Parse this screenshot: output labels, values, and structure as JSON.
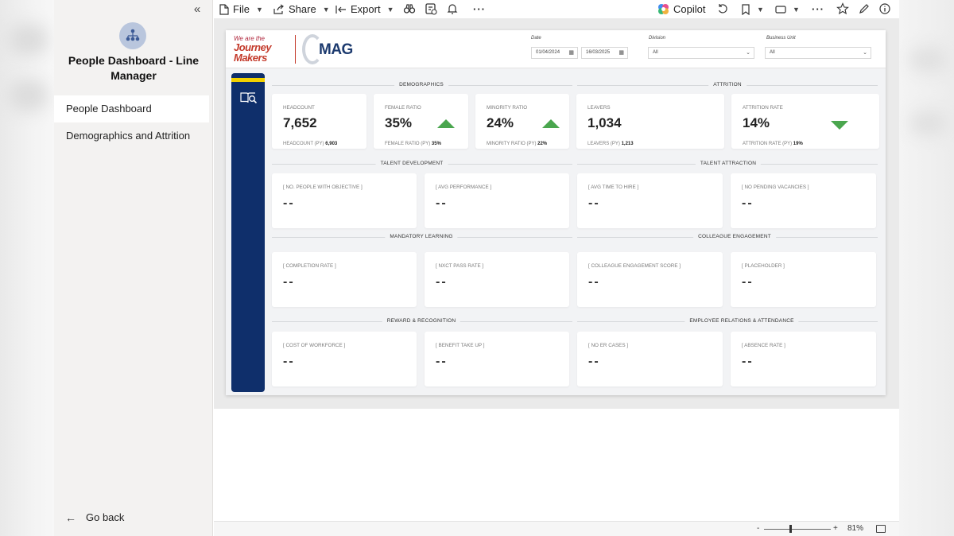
{
  "nav": {
    "title": "People Dashboard - Line Manager",
    "items": [
      {
        "label": "People Dashboard"
      },
      {
        "label": "Demographics and Attrition"
      }
    ],
    "go_back": "Go back"
  },
  "toolbar": {
    "file": "File",
    "share": "Share",
    "export": "Export",
    "copilot": "Copilot"
  },
  "report": {
    "brand_line1": "We are the",
    "brand_line2": "Journey",
    "brand_line3": "Makers",
    "mag": "MAG",
    "filters": {
      "date_label": "Date",
      "date_start": "01/04/2024",
      "date_end": "16/03/2025",
      "division_label": "Division",
      "division_value": "All",
      "business_unit_label": "Business Unit",
      "business_unit_value": "All"
    },
    "sections": {
      "demographics": "DEMOGRAPHICS",
      "attrition": "ATTRITION",
      "talent_development": "TALENT DEVELOPMENT",
      "talent_attraction": "TALENT ATTRACTION",
      "mandatory_learning": "MANDATORY LEARNING",
      "colleague_engagement": "COLLEAGUE ENGAGEMENT",
      "reward_recognition": "REWARD & RECOGNITION",
      "employee_relations": "EMPLOYEE RELATIONS & ATTENDANCE"
    },
    "kpis": [
      {
        "label": "HEADCOUNT",
        "value": "7,652",
        "py_label": "HEADCOUNT (PY)",
        "py_value": "6,903"
      },
      {
        "label": "FEMALE RATIO",
        "value": "35%",
        "py_label": "FEMALE RATIO (PY)",
        "py_value": "35%"
      },
      {
        "label": "MINORITY RATIO",
        "value": "24%",
        "py_label": "MINORITY RATIO (PY)",
        "py_value": "22%"
      },
      {
        "label": "LEAVERS",
        "value": "1,034",
        "py_label": "LEAVERS (PY)",
        "py_value": "1,213"
      },
      {
        "label": "ATTRITION RATE",
        "value": "14%",
        "py_label": "ATTRITION RATE (PY)",
        "py_value": "19%"
      }
    ],
    "placeholders": {
      "dash": "--",
      "row1": [
        "[ NO. PEOPLE WITH OBJECTIVE ]",
        "[ AVG PERFORMANCE ]",
        "[ AVG TIME TO HIRE ]",
        "[ NO PENDING VACANCIES ]"
      ],
      "row2": [
        "[ COMPLETION RATE ]",
        "[ NXCT PASS RATE ]",
        "[ COLLEAGUE ENGAGEMENT SCORE ]",
        "[ PLACEHOLDER ]"
      ],
      "row3": [
        "[ COST OF WORKFORCE ]",
        "[ BENEFIT TAKE UP ]",
        "[ NO ER CASES ]",
        "[ ABSENCE RATE ]"
      ]
    },
    "trend_color": "#4aa64e",
    "band_color": "#0f2f6b",
    "band_stripe_color": "#f2d100"
  },
  "zoom": {
    "minus": "-",
    "plus": "+",
    "label": "81%",
    "level": 0.81
  }
}
